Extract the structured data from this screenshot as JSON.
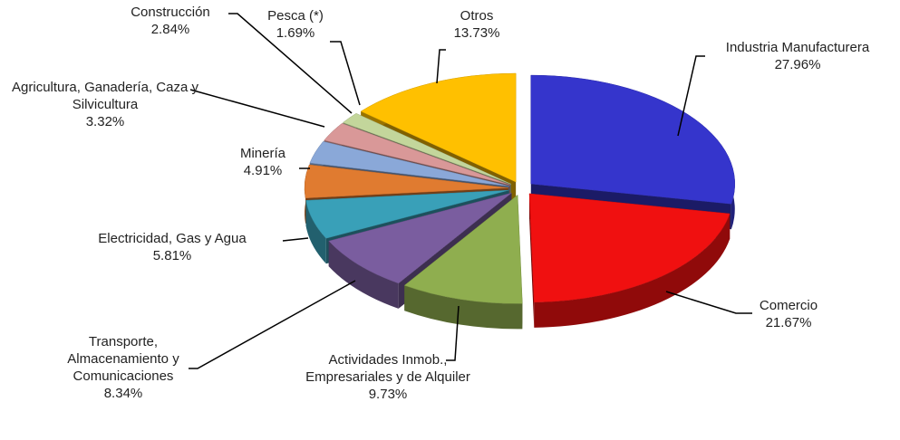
{
  "chart_data": {
    "type": "pie",
    "categories": [
      "Industria Manufacturera",
      "Comercio",
      "Actividades Inmob., Empresariales y de Alquiler",
      "Transporte, Almacenamiento y Comunicaciones",
      "Electricidad, Gas y Agua",
      "Minería",
      "Agricultura, Ganadería, Caza y Silvicultura",
      "Construcción",
      "Pesca (*)",
      "Otros"
    ],
    "values": [
      27.96,
      21.67,
      9.73,
      8.34,
      5.81,
      4.91,
      3.32,
      2.84,
      1.69,
      13.73
    ],
    "value_labels": [
      "27.96%",
      "21.67%",
      "9.73%",
      "8.34%",
      "5.81%",
      "4.91%",
      "3.32%",
      "2.84%",
      "1.69%",
      "13.73%"
    ],
    "colors": [
      "#3535cc",
      "#f01010",
      "#8fae4f",
      "#7a5d9f",
      "#39a0b8",
      "#e07b30",
      "#8aa8d8",
      "#d99898",
      "#c3d69b",
      "#ffc000"
    ]
  }
}
